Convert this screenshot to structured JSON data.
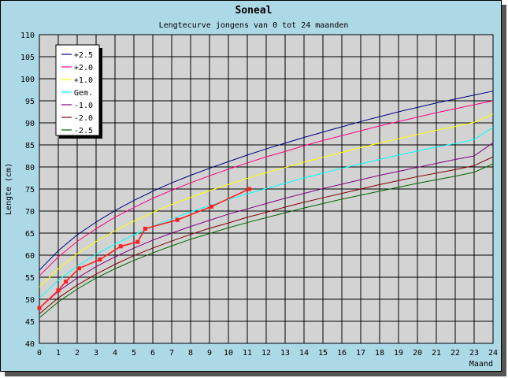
{
  "chart_data": {
    "type": "line",
    "title": "Soneal",
    "subtitle": "Lengtecurve jongens van 0 tot 24 maanden",
    "xlabel": "Maand",
    "ylabel": "Lengte (cm)",
    "xlim": [
      0,
      24
    ],
    "ylim": [
      40,
      110
    ],
    "xticks": [
      0,
      1,
      2,
      3,
      4,
      5,
      6,
      7,
      8,
      9,
      10,
      11,
      12,
      13,
      14,
      15,
      16,
      17,
      18,
      19,
      20,
      21,
      22,
      23,
      24
    ],
    "yticks": [
      40,
      45,
      50,
      55,
      60,
      65,
      70,
      75,
      80,
      85,
      90,
      95,
      100,
      105,
      110
    ],
    "grid": true,
    "legend_position": "top-left",
    "x": [
      0,
      1,
      2,
      3,
      4,
      5,
      6,
      7,
      8,
      9,
      10,
      11,
      12,
      13,
      14,
      15,
      16,
      17,
      18,
      19,
      20,
      21,
      22,
      23,
      24
    ],
    "series": [
      {
        "name": "+2.5",
        "color": "#000080",
        "values": [
          56.6,
          61.0,
          64.6,
          67.5,
          70.1,
          72.4,
          74.5,
          76.4,
          78.1,
          79.7,
          81.2,
          82.7,
          84.1,
          85.4,
          86.7,
          87.9,
          89.1,
          90.3,
          91.4,
          92.5,
          93.5,
          94.5,
          95.4,
          96.3,
          97.2
        ]
      },
      {
        "name": "+2.0",
        "color": "#ff0080",
        "values": [
          55.3,
          59.6,
          63.1,
          66.0,
          68.6,
          70.8,
          72.9,
          74.7,
          76.4,
          78.0,
          79.5,
          80.9,
          82.3,
          83.5,
          84.8,
          86.0,
          87.1,
          88.2,
          89.3,
          90.3,
          91.3,
          92.3,
          93.2,
          94.1,
          95.0
        ]
      },
      {
        "name": "+1.0",
        "color": "#ffff00",
        "values": [
          52.8,
          56.9,
          60.3,
          63.1,
          65.5,
          67.7,
          69.7,
          71.5,
          73.1,
          74.6,
          76.0,
          77.4,
          78.7,
          79.9,
          81.1,
          82.2,
          83.3,
          84.4,
          85.4,
          86.4,
          87.4,
          88.3,
          89.2,
          90.1,
          92.0
        ]
      },
      {
        "name": "Gem.",
        "color": "#00ffff",
        "values": [
          50.3,
          54.3,
          57.5,
          60.2,
          62.5,
          64.6,
          66.5,
          68.2,
          69.8,
          71.2,
          72.6,
          73.9,
          75.1,
          76.3,
          77.5,
          78.6,
          79.7,
          80.7,
          81.7,
          82.7,
          83.6,
          84.5,
          85.3,
          86.2,
          89.0
        ]
      },
      {
        "name": "-1.0",
        "color": "#800080",
        "values": [
          48.0,
          51.8,
          54.8,
          57.4,
          59.6,
          61.6,
          63.4,
          65.0,
          66.5,
          67.9,
          69.3,
          70.5,
          71.7,
          72.9,
          74.0,
          75.1,
          76.1,
          77.1,
          78.1,
          79.0,
          79.9,
          80.8,
          81.7,
          82.5,
          85.5
        ]
      },
      {
        "name": "-2.0",
        "color": "#800000",
        "values": [
          46.7,
          50.3,
          53.2,
          55.7,
          57.9,
          59.9,
          61.6,
          63.2,
          64.7,
          66.1,
          67.3,
          68.6,
          69.7,
          70.9,
          72.0,
          73.0,
          74.0,
          75.0,
          76.0,
          76.9,
          77.8,
          78.6,
          79.4,
          80.3,
          82.3
        ]
      },
      {
        "name": "-2.5",
        "color": "#006400",
        "values": [
          45.8,
          49.4,
          52.3,
          54.8,
          56.9,
          58.8,
          60.5,
          62.1,
          63.6,
          64.9,
          66.2,
          67.4,
          68.5,
          69.6,
          70.7,
          71.7,
          72.7,
          73.6,
          74.5,
          75.4,
          76.3,
          77.1,
          77.9,
          78.8,
          80.7
        ]
      }
    ],
    "measurements": {
      "color": "#ff2020",
      "points": [
        {
          "x": 0.0,
          "y": 48
        },
        {
          "x": 1.0,
          "y": 52
        },
        {
          "x": 1.4,
          "y": 54
        },
        {
          "x": 2.1,
          "y": 57
        },
        {
          "x": 3.2,
          "y": 59
        },
        {
          "x": 4.3,
          "y": 62
        },
        {
          "x": 5.2,
          "y": 63
        },
        {
          "x": 5.6,
          "y": 66
        },
        {
          "x": 7.3,
          "y": 68
        },
        {
          "x": 9.1,
          "y": 71
        },
        {
          "x": 11.1,
          "y": 75
        }
      ]
    }
  }
}
